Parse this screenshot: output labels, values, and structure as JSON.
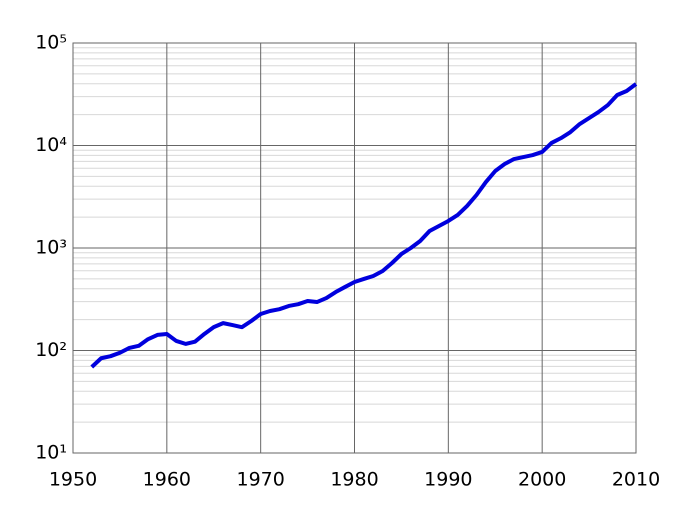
{
  "chart_data": {
    "type": "line",
    "log_y": true,
    "grid": true,
    "minor_grid": true,
    "x": [
      1952,
      1953,
      1954,
      1955,
      1956,
      1957,
      1958,
      1959,
      1960,
      1961,
      1962,
      1963,
      1964,
      1965,
      1966,
      1967,
      1968,
      1969,
      1970,
      1971,
      1972,
      1973,
      1974,
      1975,
      1976,
      1977,
      1978,
      1979,
      1980,
      1981,
      1982,
      1983,
      1984,
      1985,
      1986,
      1987,
      1988,
      1989,
      1990,
      1991,
      1992,
      1993,
      1994,
      1995,
      1996,
      1997,
      1998,
      1999,
      2000,
      2001,
      2002,
      2003,
      2004,
      2005,
      2006,
      2007,
      2008,
      2009,
      2010
    ],
    "series": [
      {
        "color": "#0000dd",
        "values": [
          69,
          84,
          88,
          95,
          106,
          111,
          129,
          142,
          145,
          124,
          116,
          122,
          145,
          169,
          185,
          177,
          169,
          194,
          227,
          243,
          253,
          272,
          283,
          304,
          297,
          325,
          372,
          417,
          466,
          499,
          533,
          597,
          714,
          874,
          1000,
          1170,
          1465,
          1640,
          1835,
          2100,
          2570,
          3290,
          4400,
          5640,
          6600,
          7380,
          7720,
          8070,
          8650,
          10600,
          11800,
          13500,
          16200,
          18500,
          21200,
          24800,
          31100,
          34000,
          39800
        ]
      }
    ],
    "xlim": [
      1950,
      2010
    ],
    "xticks": [
      1950,
      1960,
      1970,
      1980,
      1990,
      2000,
      2010
    ],
    "ylim": [
      10,
      100000
    ],
    "yticks": [
      {
        "value": 10,
        "label": "10¹"
      },
      {
        "value": 100,
        "label": "10²"
      },
      {
        "value": 1000,
        "label": "10³"
      },
      {
        "value": 10000,
        "label": "10⁴"
      },
      {
        "value": 100000,
        "label": "10⁵"
      }
    ]
  }
}
